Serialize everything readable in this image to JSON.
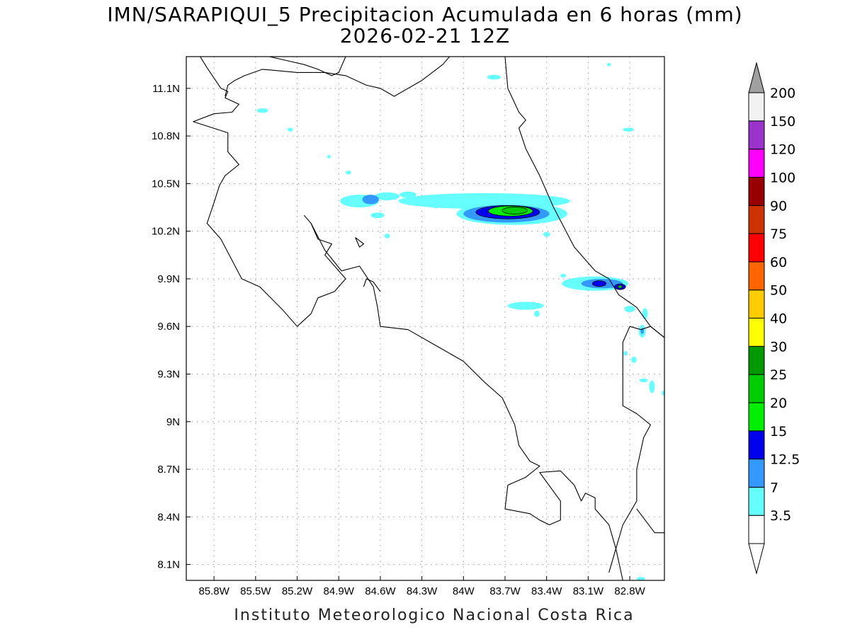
{
  "title": {
    "line1": "IMN/SARAPIQUI_5 Precipitacion Acumulada en 6 horas (mm)",
    "line2": "2026-02-21 12Z"
  },
  "footer": "Instituto Meteorologico Nacional Costa Rica",
  "map": {
    "lon_range": [
      -86.0,
      -82.55
    ],
    "lat_range": [
      8.0,
      11.3
    ],
    "grid": true,
    "lon_ticks": [
      {
        "value": -85.8,
        "label": "85.8W"
      },
      {
        "value": -85.5,
        "label": "85.5W"
      },
      {
        "value": -85.2,
        "label": "85.2W"
      },
      {
        "value": -84.9,
        "label": "84.9W"
      },
      {
        "value": -84.6,
        "label": "84.6W"
      },
      {
        "value": -84.3,
        "label": "84.3W"
      },
      {
        "value": -84.0,
        "label": "84W"
      },
      {
        "value": -83.7,
        "label": "83.7W"
      },
      {
        "value": -83.4,
        "label": "83.4W"
      },
      {
        "value": -83.1,
        "label": "83.1W"
      },
      {
        "value": -82.8,
        "label": "82.8W"
      }
    ],
    "lat_ticks": [
      {
        "value": 11.1,
        "label": "11.1N"
      },
      {
        "value": 10.8,
        "label": "10.8N"
      },
      {
        "value": 10.5,
        "label": "10.5N"
      },
      {
        "value": 10.2,
        "label": "10.2N"
      },
      {
        "value": 9.9,
        "label": "9.9N"
      },
      {
        "value": 9.6,
        "label": "9.6N"
      },
      {
        "value": 9.3,
        "label": "9.3N"
      },
      {
        "value": 9.0,
        "label": "9N"
      },
      {
        "value": 8.7,
        "label": "8.7N"
      },
      {
        "value": 8.4,
        "label": "8.4N"
      },
      {
        "value": 8.1,
        "label": "8.1N"
      }
    ]
  },
  "colorbar": {
    "levels": [
      "3.5",
      "7",
      "12.5",
      "15",
      "20",
      "25",
      "30",
      "40",
      "50",
      "60",
      "75",
      "90",
      "100",
      "120",
      "150",
      "200"
    ],
    "colors": [
      "#66ffff",
      "#3399ff",
      "#0000ee",
      "#00ee00",
      "#00cc00",
      "#009900",
      "#ffff00",
      "#ffcc00",
      "#ff6600",
      "#ff0000",
      "#cc3300",
      "#990000",
      "#ff00ff",
      "#9933cc",
      "#f2f2f2"
    ],
    "under_color": "#ffffff",
    "over_color": "#a0a0a0"
  },
  "precip_blobs": [
    {
      "lon": -83.85,
      "lat": 10.39,
      "rlon": 0.62,
      "rlat": 0.05,
      "level": 0
    },
    {
      "lon": -84.55,
      "lat": 10.42,
      "rlon": 0.09,
      "rlat": 0.025,
      "level": 0
    },
    {
      "lon": -84.4,
      "lat": 10.43,
      "rlon": 0.06,
      "rlat": 0.02,
      "level": 0
    },
    {
      "lon": -84.75,
      "lat": 10.39,
      "rlon": 0.14,
      "rlat": 0.04,
      "level": 0
    },
    {
      "lon": -83.65,
      "lat": 10.31,
      "rlon": 0.4,
      "rlat": 0.07,
      "level": 0
    },
    {
      "lon": -84.67,
      "lat": 10.4,
      "rlon": 0.06,
      "rlat": 0.03,
      "level": 1
    },
    {
      "lon": -83.69,
      "lat": 10.31,
      "rlon": 0.31,
      "rlat": 0.055,
      "level": 1
    },
    {
      "lon": -83.68,
      "lat": 10.32,
      "rlon": 0.23,
      "rlat": 0.042,
      "level": 2
    },
    {
      "lon": -83.66,
      "lat": 10.327,
      "rlon": 0.16,
      "rlat": 0.032,
      "level": 3
    },
    {
      "lon": -83.63,
      "lat": 10.33,
      "rlon": 0.09,
      "rlat": 0.022,
      "level": 4
    },
    {
      "lon": -84.62,
      "lat": 10.3,
      "rlon": 0.05,
      "rlat": 0.018,
      "level": 0
    },
    {
      "lon": -84.55,
      "lat": 10.17,
      "rlon": 0.02,
      "rlat": 0.015,
      "level": 0
    },
    {
      "lon": -84.2,
      "lat": 10.36,
      "rlon": 0.03,
      "rlat": 0.015,
      "level": 0
    },
    {
      "lon": -83.38,
      "lat": 10.37,
      "rlon": 0.03,
      "rlat": 0.012,
      "level": 0
    },
    {
      "lon": -83.4,
      "lat": 10.18,
      "rlon": 0.025,
      "rlat": 0.015,
      "level": 0
    },
    {
      "lon": -83.05,
      "lat": 9.87,
      "rlon": 0.24,
      "rlat": 0.045,
      "level": 0
    },
    {
      "lon": -83.0,
      "lat": 9.87,
      "rlon": 0.15,
      "rlat": 0.03,
      "level": 1
    },
    {
      "lon": -83.02,
      "lat": 9.87,
      "rlon": 0.05,
      "rlat": 0.018,
      "level": 2
    },
    {
      "lon": -82.87,
      "lat": 9.85,
      "rlon": 0.04,
      "rlat": 0.018,
      "level": 2
    },
    {
      "lon": -82.87,
      "lat": 9.85,
      "rlon": 0.015,
      "rlat": 0.01,
      "level": 4
    },
    {
      "lon": -83.28,
      "lat": 9.92,
      "rlon": 0.02,
      "rlat": 0.012,
      "level": 0
    },
    {
      "lon": -83.55,
      "lat": 9.73,
      "rlon": 0.13,
      "rlat": 0.025,
      "level": 0
    },
    {
      "lon": -83.47,
      "lat": 9.68,
      "rlon": 0.02,
      "rlat": 0.02,
      "level": 0
    },
    {
      "lon": -82.8,
      "lat": 9.71,
      "rlon": 0.04,
      "rlat": 0.02,
      "level": 0
    },
    {
      "lon": -82.69,
      "lat": 9.68,
      "rlon": 0.02,
      "rlat": 0.035,
      "level": 0
    },
    {
      "lon": -82.71,
      "lat": 9.57,
      "rlon": 0.025,
      "rlat": 0.04,
      "level": 0
    },
    {
      "lon": -82.71,
      "lat": 9.57,
      "rlon": 0.012,
      "rlat": 0.018,
      "level": 1
    },
    {
      "lon": -83.78,
      "lat": 11.17,
      "rlon": 0.05,
      "rlat": 0.015,
      "level": 0
    },
    {
      "lon": -82.95,
      "lat": 11.25,
      "rlon": 0.015,
      "rlat": 0.01,
      "level": 0
    },
    {
      "lon": -82.81,
      "lat": 10.84,
      "rlon": 0.04,
      "rlat": 0.012,
      "level": 0
    },
    {
      "lon": -85.45,
      "lat": 10.96,
      "rlon": 0.04,
      "rlat": 0.014,
      "level": 0
    },
    {
      "lon": -85.25,
      "lat": 10.84,
      "rlon": 0.02,
      "rlat": 0.012,
      "level": 0
    },
    {
      "lon": -84.97,
      "lat": 10.67,
      "rlon": 0.012,
      "rlat": 0.012,
      "level": 0
    },
    {
      "lon": -84.83,
      "lat": 10.57,
      "rlon": 0.02,
      "rlat": 0.012,
      "level": 0
    },
    {
      "lon": -82.83,
      "lat": 9.43,
      "rlon": 0.015,
      "rlat": 0.015,
      "level": 0
    },
    {
      "lon": -82.77,
      "lat": 9.39,
      "rlon": 0.02,
      "rlat": 0.02,
      "level": 0
    },
    {
      "lon": -82.7,
      "lat": 9.26,
      "rlon": 0.03,
      "rlat": 0.012,
      "level": 0
    },
    {
      "lon": -82.64,
      "lat": 9.22,
      "rlon": 0.02,
      "rlat": 0.04,
      "level": 0
    },
    {
      "lon": -82.56,
      "lat": 9.18,
      "rlon": 0.01,
      "rlat": 0.015,
      "level": 0
    },
    {
      "lon": -82.72,
      "lat": 8.01,
      "rlon": 0.03,
      "rlat": 0.012,
      "level": 0
    }
  ],
  "coastlines": [
    [
      [
        -85.9,
        11.3
      ],
      [
        -85.85,
        11.23
      ],
      [
        -85.75,
        11.1
      ],
      [
        -85.7,
        11.08
      ],
      [
        -85.72,
        11.04
      ],
      [
        -85.62,
        11.0
      ],
      [
        -85.67,
        10.95
      ],
      [
        -85.8,
        10.94
      ],
      [
        -85.95,
        10.89
      ],
      [
        -85.7,
        10.82
      ],
      [
        -85.7,
        10.7
      ],
      [
        -85.62,
        10.62
      ],
      [
        -85.72,
        10.55
      ],
      [
        -85.76,
        10.49
      ],
      [
        -85.8,
        10.38
      ],
      [
        -85.85,
        10.25
      ],
      [
        -85.75,
        10.15
      ],
      [
        -85.6,
        9.9
      ],
      [
        -85.47,
        9.85
      ],
      [
        -85.3,
        9.7
      ],
      [
        -85.2,
        9.6
      ],
      [
        -85.1,
        9.68
      ],
      [
        -85.05,
        9.78
      ],
      [
        -84.93,
        9.82
      ],
      [
        -84.85,
        9.9
      ],
      [
        -85.0,
        10.05
      ],
      [
        -84.95,
        10.12
      ],
      [
        -85.05,
        10.15
      ],
      [
        -85.1,
        10.25
      ],
      [
        -85.15,
        10.3
      ]
    ],
    [
      [
        -85.1,
        10.25
      ],
      [
        -85.0,
        10.08
      ],
      [
        -84.88,
        9.95
      ],
      [
        -84.75,
        9.98
      ],
      [
        -84.65,
        9.85
      ],
      [
        -84.62,
        9.72
      ],
      [
        -84.6,
        9.6
      ],
      [
        -84.4,
        9.58
      ],
      [
        -84.2,
        9.48
      ],
      [
        -84.0,
        9.38
      ],
      [
        -83.85,
        9.25
      ],
      [
        -83.72,
        9.15
      ],
      [
        -83.63,
        8.98
      ],
      [
        -83.6,
        8.85
      ],
      [
        -83.52,
        8.75
      ],
      [
        -83.45,
        8.72
      ],
      [
        -83.55,
        8.65
      ],
      [
        -83.68,
        8.6
      ],
      [
        -83.7,
        8.45
      ],
      [
        -83.52,
        8.42
      ],
      [
        -83.45,
        8.38
      ],
      [
        -83.38,
        8.35
      ],
      [
        -83.3,
        8.38
      ],
      [
        -83.3,
        8.5
      ],
      [
        -83.45,
        8.68
      ],
      [
        -83.3,
        8.69
      ],
      [
        -83.2,
        8.6
      ],
      [
        -83.15,
        8.5
      ],
      [
        -83.12,
        8.55
      ],
      [
        -83.05,
        8.52
      ],
      [
        -83.05,
        8.45
      ],
      [
        -82.95,
        8.35
      ],
      [
        -82.9,
        8.2
      ],
      [
        -82.85,
        8.0
      ]
    ],
    [
      [
        -84.1,
        11.3
      ],
      [
        -84.15,
        11.25
      ],
      [
        -84.3,
        11.15
      ],
      [
        -84.5,
        11.05
      ],
      [
        -84.6,
        11.1
      ],
      [
        -84.7,
        11.12
      ],
      [
        -84.85,
        11.18
      ],
      [
        -85.0,
        11.2
      ],
      [
        -85.2,
        11.2
      ],
      [
        -85.45,
        11.22
      ],
      [
        -85.58,
        11.18
      ],
      [
        -85.65,
        11.15
      ],
      [
        -85.7,
        11.12
      ],
      [
        -85.72,
        11.05
      ]
    ],
    [
      [
        -84.85,
        11.3
      ],
      [
        -84.9,
        11.2
      ],
      [
        -84.95,
        11.18
      ],
      [
        -85.05,
        11.22
      ],
      [
        -85.15,
        11.25
      ],
      [
        -85.3,
        11.28
      ],
      [
        -85.4,
        11.3
      ]
    ],
    [
      [
        -83.7,
        11.3
      ],
      [
        -83.68,
        11.1
      ],
      [
        -83.6,
        10.95
      ],
      [
        -83.55,
        10.9
      ],
      [
        -83.6,
        10.85
      ],
      [
        -83.55,
        10.72
      ],
      [
        -83.45,
        10.55
      ],
      [
        -83.35,
        10.35
      ],
      [
        -83.2,
        10.1
      ],
      [
        -83.05,
        9.95
      ],
      [
        -82.95,
        9.9
      ],
      [
        -82.88,
        9.8
      ],
      [
        -82.75,
        9.72
      ],
      [
        -82.65,
        9.6
      ],
      [
        -82.55,
        9.53
      ]
    ],
    [
      [
        -82.55,
        9.53
      ],
      [
        -82.65,
        9.6
      ],
      [
        -82.72,
        9.58
      ],
      [
        -82.8,
        9.6
      ],
      [
        -82.85,
        9.5
      ],
      [
        -82.85,
        9.3
      ],
      [
        -82.85,
        9.1
      ],
      [
        -82.75,
        9.05
      ],
      [
        -82.65,
        8.98
      ],
      [
        -82.7,
        8.9
      ],
      [
        -82.75,
        8.7
      ],
      [
        -82.75,
        8.5
      ],
      [
        -82.85,
        8.35
      ],
      [
        -82.9,
        8.2
      ],
      [
        -82.95,
        8.05
      ]
    ],
    [
      [
        -82.75,
        8.45
      ],
      [
        -82.62,
        8.3
      ],
      [
        -82.55,
        8.3
      ]
    ],
    [
      [
        -84.78,
        10.16
      ],
      [
        -84.75,
        10.1
      ],
      [
        -84.72,
        10.12
      ],
      [
        -84.78,
        10.16
      ]
    ],
    [
      [
        -84.6,
        9.82
      ],
      [
        -84.65,
        9.88
      ],
      [
        -84.7,
        9.9
      ],
      [
        -84.72,
        9.85
      ]
    ]
  ]
}
